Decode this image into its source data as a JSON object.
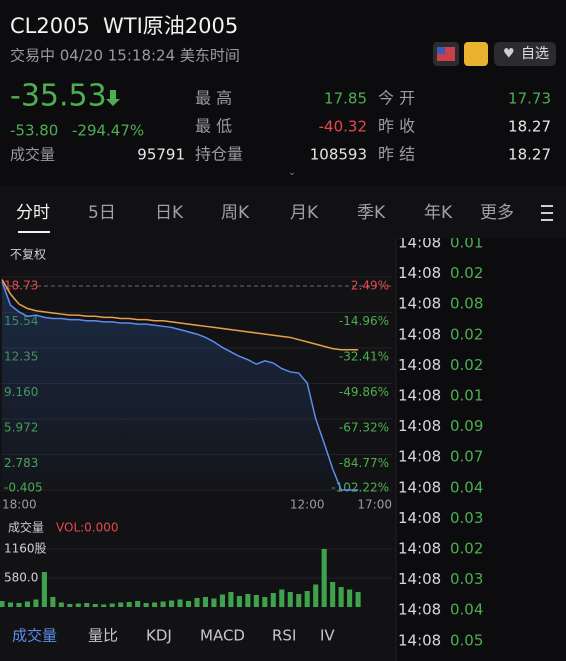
{
  "header": {
    "symbol": "CL2005",
    "name": "WTI原油2005",
    "status": "交易中 04/20 15:18:24 美东时间",
    "watch": "自选"
  },
  "quote": {
    "price": "-35.53",
    "change": "-53.80",
    "change_pct": "-294.47%",
    "volume_label": "成交量",
    "volume": "95791",
    "left_stats": [
      {
        "label": "最 高",
        "value": "17.85"
      },
      {
        "label": "最 低",
        "value": "-40.32"
      },
      {
        "label": "持仓量",
        "value": "108593"
      }
    ],
    "right_stats": [
      {
        "label": "今 开",
        "value": "17.73"
      },
      {
        "label": "昨 收",
        "value": "18.27"
      },
      {
        "label": "昨 结",
        "value": "18.27"
      }
    ]
  },
  "tabs": [
    "分时",
    "5日",
    "日K",
    "周K",
    "月K",
    "季K",
    "年K",
    "更多"
  ],
  "price_chart": {
    "type": "line",
    "adjust_label": "不复权",
    "categories": [
      "18:00",
      null,
      null,
      null,
      null,
      null,
      null,
      null,
      null,
      null,
      null,
      null,
      null,
      null,
      null,
      null,
      null,
      null,
      null,
      null,
      null,
      null,
      null,
      null,
      null,
      null,
      null,
      null,
      null,
      null,
      null,
      null,
      null,
      null,
      null,
      null,
      "12:00",
      null,
      null,
      null,
      null,
      null,
      null,
      null,
      null,
      null,
      "17:00"
    ],
    "ylim": [
      -0.405,
      18.73
    ],
    "yticks": [
      18.73,
      15.54,
      12.35,
      {
        "value": 9.16,
        "label": "9.160"
      },
      5.972,
      2.783,
      -0.405
    ],
    "y2lim": [
      -102.22,
      2.49
    ],
    "y2ticks": [
      {
        "value": 2.49,
        "label": "2.49%"
      },
      {
        "value": -14.96,
        "label": "-14.96%"
      },
      {
        "value": -32.41,
        "label": "-32.41%"
      },
      {
        "value": -49.86,
        "label": "-49.86%"
      },
      {
        "value": -67.32,
        "label": "-67.32%"
      },
      {
        "value": -84.77,
        "label": "-84.77%"
      },
      {
        "value": -102.22,
        "label": "-102.22%"
      }
    ],
    "series": [
      {
        "color": "#5b8def",
        "values": [
          18.3,
          16.2,
          15.6,
          15.2,
          15.3,
          15.1,
          15.0,
          15.0,
          14.9,
          14.9,
          14.8,
          14.8,
          14.7,
          14.7,
          14.6,
          14.6,
          14.5,
          14.5,
          14.4,
          14.3,
          14.2,
          14.0,
          13.8,
          13.6,
          13.3,
          12.9,
          12.4,
          12.0,
          11.6,
          11.3,
          10.9,
          11.2,
          11.0,
          10.5,
          10.2,
          10.1,
          9.2,
          6.0,
          3.8,
          1.5,
          -0.4,
          -0.4,
          -0.4,
          null,
          null,
          null,
          null
        ]
      },
      {
        "color": "#e8a04a",
        "values": [
          18.5,
          17.2,
          16.3,
          15.9,
          15.7,
          15.6,
          15.5,
          15.4,
          15.3,
          15.3,
          15.2,
          15.2,
          15.1,
          15.1,
          15.0,
          15.0,
          14.9,
          14.9,
          14.8,
          14.8,
          14.7,
          14.6,
          14.5,
          14.4,
          14.3,
          14.2,
          14.1,
          14.0,
          13.9,
          13.8,
          13.7,
          13.6,
          13.5,
          13.4,
          13.3,
          13.1,
          12.9,
          12.7,
          12.5,
          12.3,
          12.2,
          12.2,
          12.2,
          null,
          null,
          null,
          null
        ]
      }
    ]
  },
  "volume_chart": {
    "type": "bar",
    "title": "成交量",
    "indicator": "VOL:0.000",
    "color": "#3fa34d",
    "ylim": [
      0,
      1160
    ],
    "yticks": [
      {
        "value": 1160,
        "label": "1160股"
      },
      {
        "value": 580,
        "label": "580.0"
      }
    ],
    "values": [
      120,
      90,
      80,
      110,
      150,
      700,
      200,
      90,
      60,
      70,
      80,
      60,
      50,
      70,
      90,
      100,
      120,
      80,
      90,
      110,
      130,
      150,
      120,
      180,
      200,
      170,
      250,
      300,
      220,
      260,
      240,
      200,
      280,
      350,
      300,
      260,
      320,
      450,
      1160,
      500,
      400,
      350,
      300,
      null,
      null,
      null,
      null
    ]
  },
  "indicator_tabs": [
    "成交量",
    "量比",
    "KDJ",
    "MACD",
    "RSI",
    "IV"
  ],
  "trades": [
    {
      "time": "14:08",
      "price": "0.01"
    },
    {
      "time": "14:08",
      "price": "0.02"
    },
    {
      "time": "14:08",
      "price": "0.08"
    },
    {
      "time": "14:08",
      "price": "0.02"
    },
    {
      "time": "14:08",
      "price": "0.02"
    },
    {
      "time": "14:08",
      "price": "0.01"
    },
    {
      "time": "14:08",
      "price": "0.09"
    },
    {
      "time": "14:08",
      "price": "0.07"
    },
    {
      "time": "14:08",
      "price": "0.04"
    },
    {
      "time": "14:08",
      "price": "0.03"
    },
    {
      "time": "14:08",
      "price": "0.02"
    },
    {
      "time": "14:08",
      "price": "0.03"
    },
    {
      "time": "14:08",
      "price": "0.04"
    },
    {
      "time": "14:08",
      "price": "0.05"
    }
  ]
}
